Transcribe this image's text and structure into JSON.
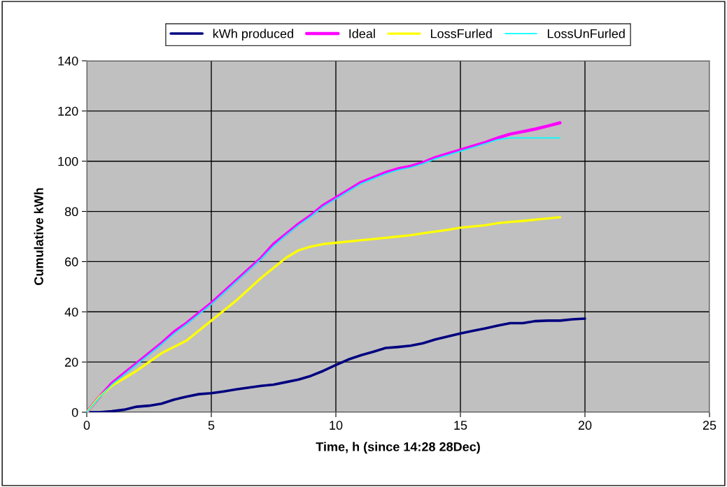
{
  "chart_data": {
    "type": "line",
    "xlabel": "Time, h (since 14:28 28Dec)",
    "ylabel": "Cumulative kWh",
    "xlim": [
      0,
      25
    ],
    "xticks": [
      0,
      5,
      10,
      15,
      20,
      25
    ],
    "ylim": [
      0,
      140
    ],
    "yticks": [
      0,
      20,
      40,
      60,
      80,
      100,
      120,
      140
    ],
    "grid": true,
    "legend": "top",
    "marker": "none",
    "line_style": "solid",
    "series": [
      {
        "name": "kWh produced",
        "color": "#000080",
        "x": [
          0,
          0.5,
          1,
          1.5,
          2,
          2.5,
          3,
          3.5,
          4,
          4.5,
          5,
          5.5,
          6,
          6.5,
          7,
          7.5,
          8,
          8.5,
          9,
          9.5,
          10,
          10.5,
          11,
          11.5,
          12,
          12.5,
          13,
          13.5,
          14,
          14.5,
          15,
          15.5,
          16,
          16.5,
          17,
          17.5,
          18,
          18.5,
          19,
          19.5,
          20
        ],
        "values": [
          0,
          0,
          0.4,
          1,
          2.2,
          2.6,
          3.4,
          5,
          6.2,
          7.2,
          7.6,
          8.3,
          9.1,
          9.8,
          10.5,
          11,
          12,
          13,
          14.5,
          16.5,
          18.8,
          21,
          22.7,
          24.1,
          25.6,
          26,
          26.5,
          27.5,
          29,
          30.2,
          31.4,
          32.4,
          33.4,
          34.5,
          35.5,
          35.5,
          36.3,
          36.5,
          36.5,
          37,
          37.3
        ]
      },
      {
        "name": "Ideal",
        "color": "#ff00ff",
        "x": [
          0,
          0.5,
          1,
          1.5,
          2,
          2.5,
          3,
          3.5,
          4,
          4.5,
          5,
          5.5,
          6,
          6.5,
          7,
          7.5,
          8,
          8.5,
          9,
          9.5,
          10,
          10.5,
          11,
          11.5,
          12,
          12.5,
          13,
          13.5,
          14,
          14.5,
          15,
          15.5,
          16,
          16.5,
          17,
          17.5,
          18,
          18.5,
          19
        ],
        "values": [
          0,
          6,
          11.5,
          15.5,
          19.5,
          23.5,
          27.5,
          32,
          35.5,
          39.5,
          43.5,
          48,
          52.5,
          57,
          61.5,
          67,
          71,
          75,
          78.5,
          82.5,
          85.5,
          88.5,
          91.5,
          93.5,
          95.5,
          97,
          98,
          99.5,
          101.5,
          103,
          104.5,
          106,
          107.5,
          109.3,
          110.8,
          111.8,
          112.8,
          114,
          115.3
        ]
      },
      {
        "name": "LossFurled",
        "color": "#ffff00",
        "x": [
          0,
          0.5,
          1,
          1.5,
          2,
          2.5,
          3,
          3.5,
          4,
          4.5,
          5,
          5.5,
          6,
          6.5,
          7,
          7.5,
          8,
          8.5,
          9,
          9.5,
          10,
          10.5,
          11,
          11.5,
          12,
          12.5,
          13,
          13.5,
          14,
          14.5,
          15,
          15.5,
          16,
          16.5,
          17,
          17.5,
          18,
          18.5,
          19
        ],
        "values": [
          0,
          6,
          10.5,
          13.5,
          16.5,
          20,
          23.5,
          26,
          28.5,
          32.5,
          36.5,
          40.5,
          44.5,
          49,
          53.5,
          57.5,
          61.5,
          64.5,
          66,
          67,
          67.5,
          68,
          68.5,
          69,
          69.5,
          70,
          70.5,
          71.3,
          72,
          72.7,
          73.5,
          74,
          74.5,
          75.3,
          75.8,
          76.2,
          76.7,
          77.2,
          77.7
        ]
      },
      {
        "name": "LossUnFurled",
        "color": "#00ffff",
        "x": [
          0,
          0.5,
          1,
          1.5,
          2,
          2.5,
          3,
          3.5,
          4,
          4.5,
          5,
          5.5,
          6,
          6.5,
          7,
          7.5,
          8,
          8.5,
          9,
          9.5,
          10,
          10.5,
          11,
          11.5,
          12,
          12.5,
          13,
          13.5,
          14,
          14.5,
          15,
          15.5,
          16,
          16.5,
          17,
          17.5,
          18,
          18.5,
          19
        ],
        "values": [
          0,
          5.7,
          11,
          15,
          19,
          23,
          27,
          31.3,
          35,
          39,
          43,
          47.5,
          52,
          56.5,
          61,
          66.2,
          70.5,
          74.5,
          78,
          82,
          85,
          88,
          91,
          93,
          95,
          96.5,
          97.5,
          99,
          101,
          102.5,
          104,
          105.5,
          107,
          108.6,
          109.3,
          109.3,
          109.3,
          109.3,
          109.3
        ]
      }
    ]
  }
}
